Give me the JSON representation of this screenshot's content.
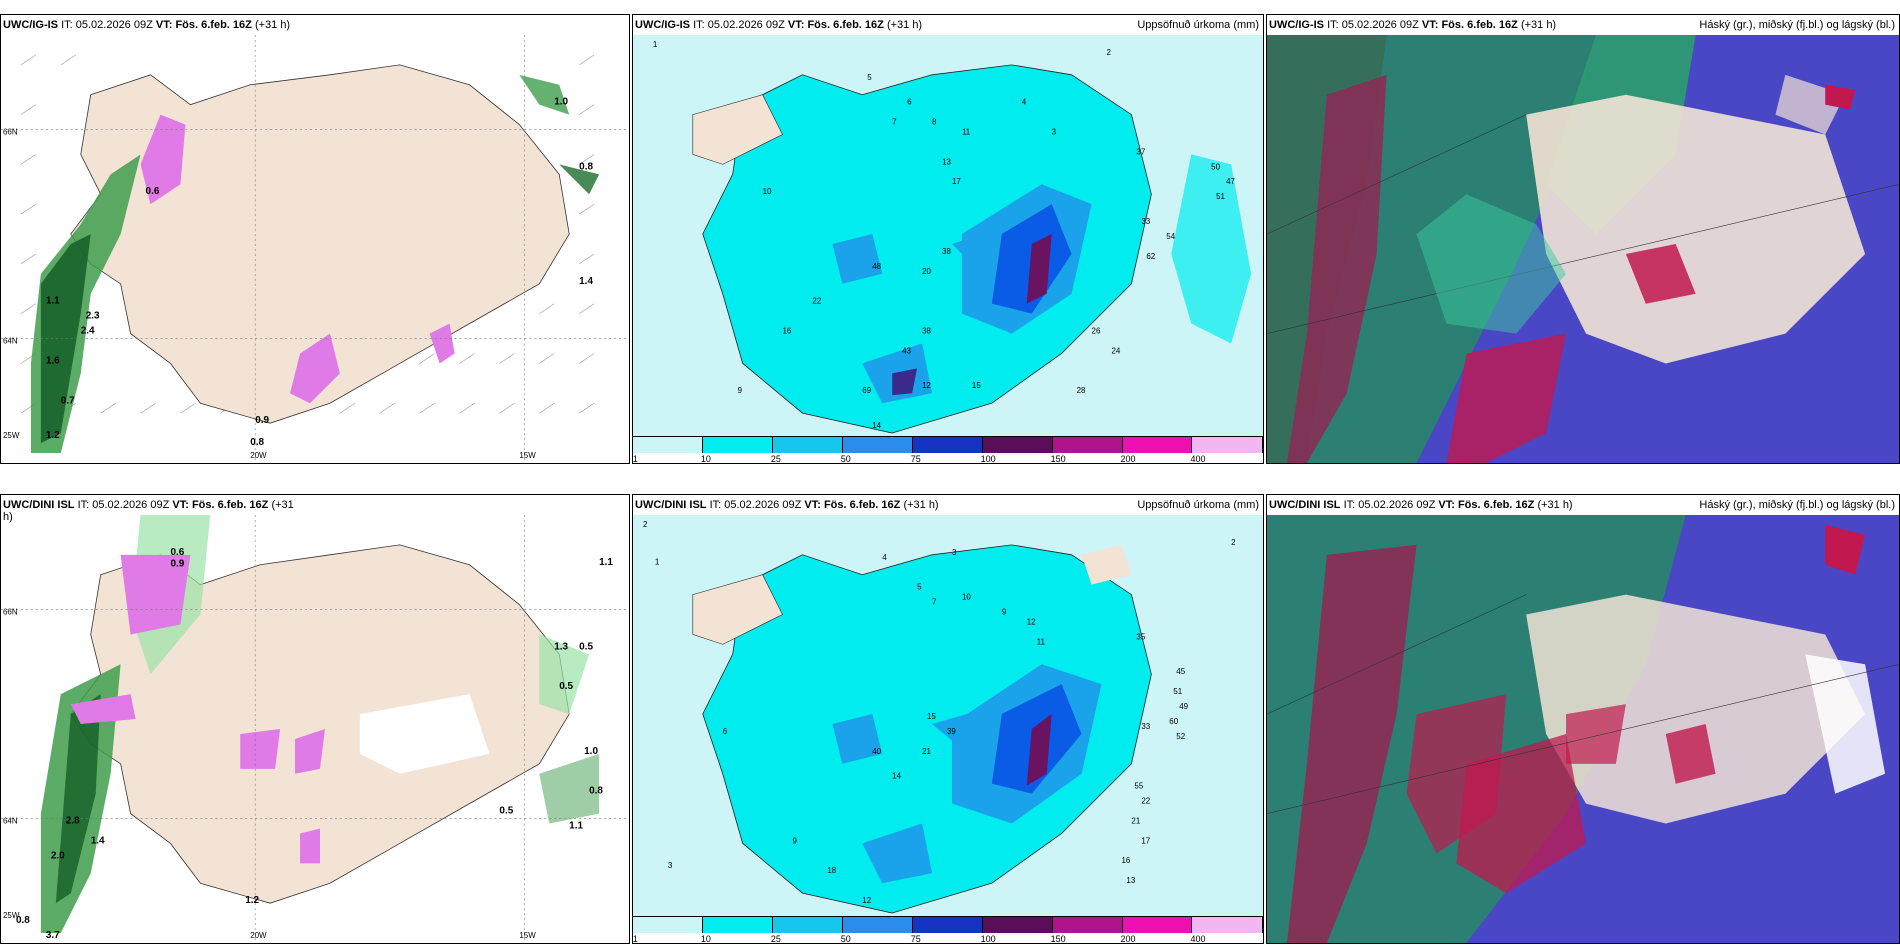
{
  "colors": {
    "land": "#f2e3d5",
    "precip_light": "#cdf4f6",
    "precip_mid": "#00ecee",
    "precip_blue": "#0a5be6",
    "precip_dark": "#6a1361",
    "snow_green": "#2f8f3a",
    "snow_pink": "#e07ae6",
    "cloud_high": "#c0184f",
    "cloud_mid": "#2e9e7d",
    "cloud_low": "#4a47c6"
  },
  "top": {
    "left": {
      "model": "UWC/IG-IS",
      "it_label": "IT:",
      "it_value": "05.02.2026 09Z",
      "vt_label": "VT:",
      "vt_value": "Fös. 6.feb. 16Z",
      "lead": "(+31 h)",
      "ticks": [
        "20W",
        "15W",
        "66N",
        "64N",
        "25W"
      ],
      "values": [
        "0.6",
        "1.1",
        "2.3",
        "2.4",
        "1.6",
        "0.7",
        "1.2",
        "0.9",
        "0.8",
        "1.0",
        "0.8",
        "1.4"
      ]
    },
    "middle": {
      "model": "UWC/IG-IS",
      "it_label": "IT:",
      "it_value": "05.02.2026 09Z",
      "vt_label": "VT:",
      "vt_value": "Fös. 6.feb. 16Z",
      "lead": "(+31 h)",
      "field_title": "Uppsöfnuð úrkoma (mm)",
      "colorbar_ticks": [
        "1",
        "10",
        "25",
        "50",
        "75",
        "100",
        "150",
        "200",
        "400"
      ],
      "values": [
        "1",
        "5",
        "6",
        "7",
        "8",
        "11",
        "4",
        "3",
        "2",
        "13",
        "17",
        "37",
        "50",
        "51",
        "47",
        "33",
        "54",
        "62",
        "38",
        "48",
        "20",
        "10",
        "22",
        "16",
        "26",
        "24",
        "28",
        "43",
        "38",
        "69",
        "15",
        "14",
        "9",
        "12"
      ]
    },
    "right": {
      "model": "UWC/IG-IS",
      "it_label": "IT:",
      "it_value": "05.02.2026 09Z",
      "vt_label": "VT:",
      "vt_value": "Fös. 6.feb. 16Z",
      "lead": "(+31 h)",
      "field_title": "Háský (gr.), miðský (fj.bl.) og lágský (bl.)"
    }
  },
  "bottom": {
    "left": {
      "model": "UWC/DINI ISL",
      "it_label": "IT:",
      "it_value": "05.02.2026 09Z",
      "vt_label": "VT:",
      "vt_value": "Fös. 6.feb. 16Z",
      "lead": "(+31",
      "lead2": "h)",
      "ticks": [
        "20W",
        "15W",
        "66N",
        "64N",
        "25W"
      ],
      "values": [
        "0.6",
        "0.9",
        "1.1",
        "1.3",
        "0.5",
        "0.5",
        "1.0",
        "0.8",
        "1.1",
        "0.5",
        "1.2",
        "2.0",
        "0.8",
        "3.7",
        "2.8",
        "1.4"
      ]
    },
    "middle": {
      "model": "UWC/DINI ISL",
      "it_label": "IT:",
      "it_value": "05.02.2026 09Z",
      "vt_label": "VT:",
      "vt_value": "Fös. 6.feb. 16Z",
      "lead": "(+31 h)",
      "field_title": "Uppsöfnuð úrkoma (mm)",
      "colorbar_ticks": [
        "1",
        "10",
        "25",
        "50",
        "75",
        "100",
        "150",
        "200",
        "400"
      ],
      "values": [
        "2",
        "1",
        "4",
        "3",
        "2",
        "5",
        "7",
        "10",
        "9",
        "12",
        "11",
        "35",
        "45",
        "51",
        "49",
        "60",
        "52",
        "15",
        "39",
        "40",
        "21",
        "14",
        "33",
        "55",
        "22",
        "21",
        "17",
        "16",
        "13",
        "12",
        "18",
        "3",
        "6",
        "9"
      ]
    },
    "right": {
      "model": "UWC/DINI ISL",
      "it_label": "IT:",
      "it_value": "05.02.2026 09Z",
      "vt_label": "VT:",
      "vt_value": "Fös. 6.feb. 16Z",
      "lead": "(+31 h)",
      "field_title": "Háský (gr.), miðský (fj.bl.) og lágský (bl.)"
    }
  }
}
